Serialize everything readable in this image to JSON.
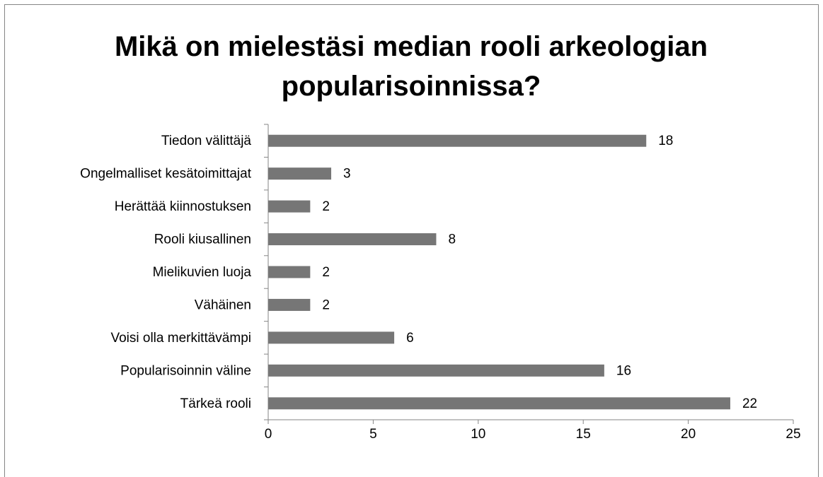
{
  "chart_data": {
    "type": "bar",
    "orientation": "horizontal",
    "title": "Mikä on mielestäsi median rooli arkeologian popularisoinnissa?",
    "categories": [
      "Tiedon välittäjä",
      "Ongelmalliset kesätoimittajat",
      "Herättää kiinnostuksen",
      "Rooli kiusallinen",
      "Mielikuvien luoja",
      "Vähäinen",
      "Voisi olla merkittävämpi",
      "Popularisoinnin väline",
      "Tärkeä rooli"
    ],
    "values": [
      18,
      3,
      2,
      8,
      2,
      2,
      6,
      16,
      22
    ],
    "color": "#767676",
    "xlim": [
      0,
      25
    ],
    "xticks": [
      0,
      5,
      10,
      15,
      20,
      25
    ],
    "grid": false
  }
}
